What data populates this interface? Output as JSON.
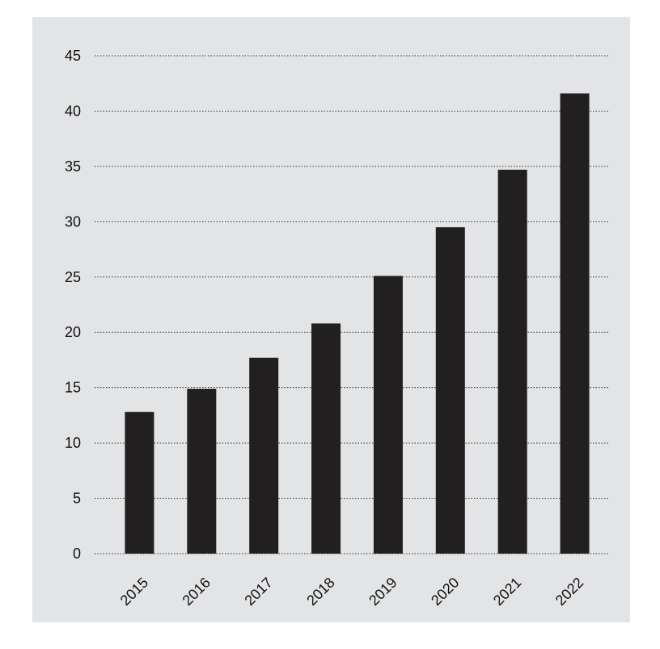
{
  "colors": {
    "panel_background": "#e3e4e6",
    "bar": "#221f20",
    "grid": "#333333",
    "text": "#111111"
  },
  "chart_data": {
    "type": "bar",
    "categories": [
      "2015",
      "2016",
      "2017",
      "2018",
      "2019",
      "2020",
      "2021",
      "2022"
    ],
    "values": [
      12.8,
      14.9,
      17.7,
      20.8,
      25.1,
      29.5,
      34.7,
      41.6
    ],
    "title": "",
    "xlabel": "",
    "ylabel": "",
    "ylim": [
      0,
      45
    ],
    "yticks": [
      0,
      5,
      10,
      15,
      20,
      25,
      30,
      35,
      40,
      45
    ],
    "grid": true,
    "grid_style": "dotted horizontal",
    "legend": "none",
    "x_tick_rotation": "-45"
  }
}
